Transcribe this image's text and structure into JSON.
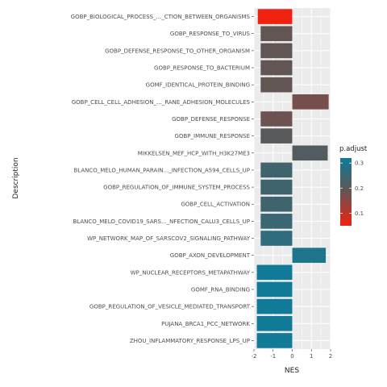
{
  "chart_data": {
    "type": "bar",
    "orientation": "horizontal",
    "xlabel": "NES",
    "ylabel": "Description",
    "xlim": [
      -2,
      2
    ],
    "xticks": [
      -2,
      -1,
      0,
      1,
      2
    ],
    "grid": true,
    "legend": {
      "title": "p.adjust",
      "placement": "right",
      "ticks": [
        0.1,
        0.2,
        0.3
      ],
      "range": [
        0.05,
        0.32
      ],
      "low_color": "#f0220f",
      "mid_color": "#595959",
      "high_color": "#117a96"
    },
    "categories": [
      "GOBP_BIOLOGICAL_PROCESS_..._CTION_BETWEEN_ORGANISMS",
      "GOBP_RESPONSE_TO_VIRUS",
      "GOBP_DEFENSE_RESPONSE_TO_OTHER_ORGANISM",
      "GOBP_RESPONSE_TO_BACTERIUM",
      "GOMF_IDENTICAL_PROTEIN_BINDING",
      "GOBP_CELL_CELL_ADHESION_..._RANE_ADHESION_MOLECULES",
      "GOBP_DEFENSE_RESPONSE",
      "GOBP_IMMUNE_RESPONSE",
      "MIKKELSEN_MEF_HCP_WITH_H3K27ME3",
      "BLANCO_MELO_HUMAN_PARAIN..._INFECTION_A594_CELLS_UP",
      "GOBP_REGULATION_OF_IMMUNE_SYSTEM_PROCESS",
      "GOBP_CELL_ACTIVATION",
      "BLANCO_MELO_COVID19_SARS..._NFECTION_CALU3_CELLS_UP",
      "WP_NETWORK_MAP_OF_SARSCOV2_SIGNALING_PATHWAY",
      "GOBP_AXON_DEVELOPMENT",
      "WP_NUCLEAR_RECEPTORS_METAPATHWAY",
      "GOMF_RNA_BINDING",
      "GOBP_REGULATION_OF_VESICLE_MEDIATED_TRANSPORT",
      "PUJANA_BRCA1_PCC_NETWORK",
      "ZHOU_INFLAMMATORY_RESPONSE_LPS_UP"
    ],
    "values": [
      -1.8,
      -1.65,
      -1.65,
      -1.65,
      -1.65,
      1.9,
      -1.65,
      -1.65,
      1.85,
      -1.65,
      -1.65,
      -1.65,
      -1.65,
      -1.65,
      1.75,
      -1.85,
      -1.85,
      -1.85,
      -1.85,
      -1.85
    ],
    "p_adjust": [
      0.05,
      0.19,
      0.19,
      0.19,
      0.19,
      0.17,
      0.18,
      0.2,
      0.21,
      0.24,
      0.24,
      0.24,
      0.25,
      0.27,
      0.3,
      0.32,
      0.32,
      0.32,
      0.32,
      0.32
    ]
  }
}
